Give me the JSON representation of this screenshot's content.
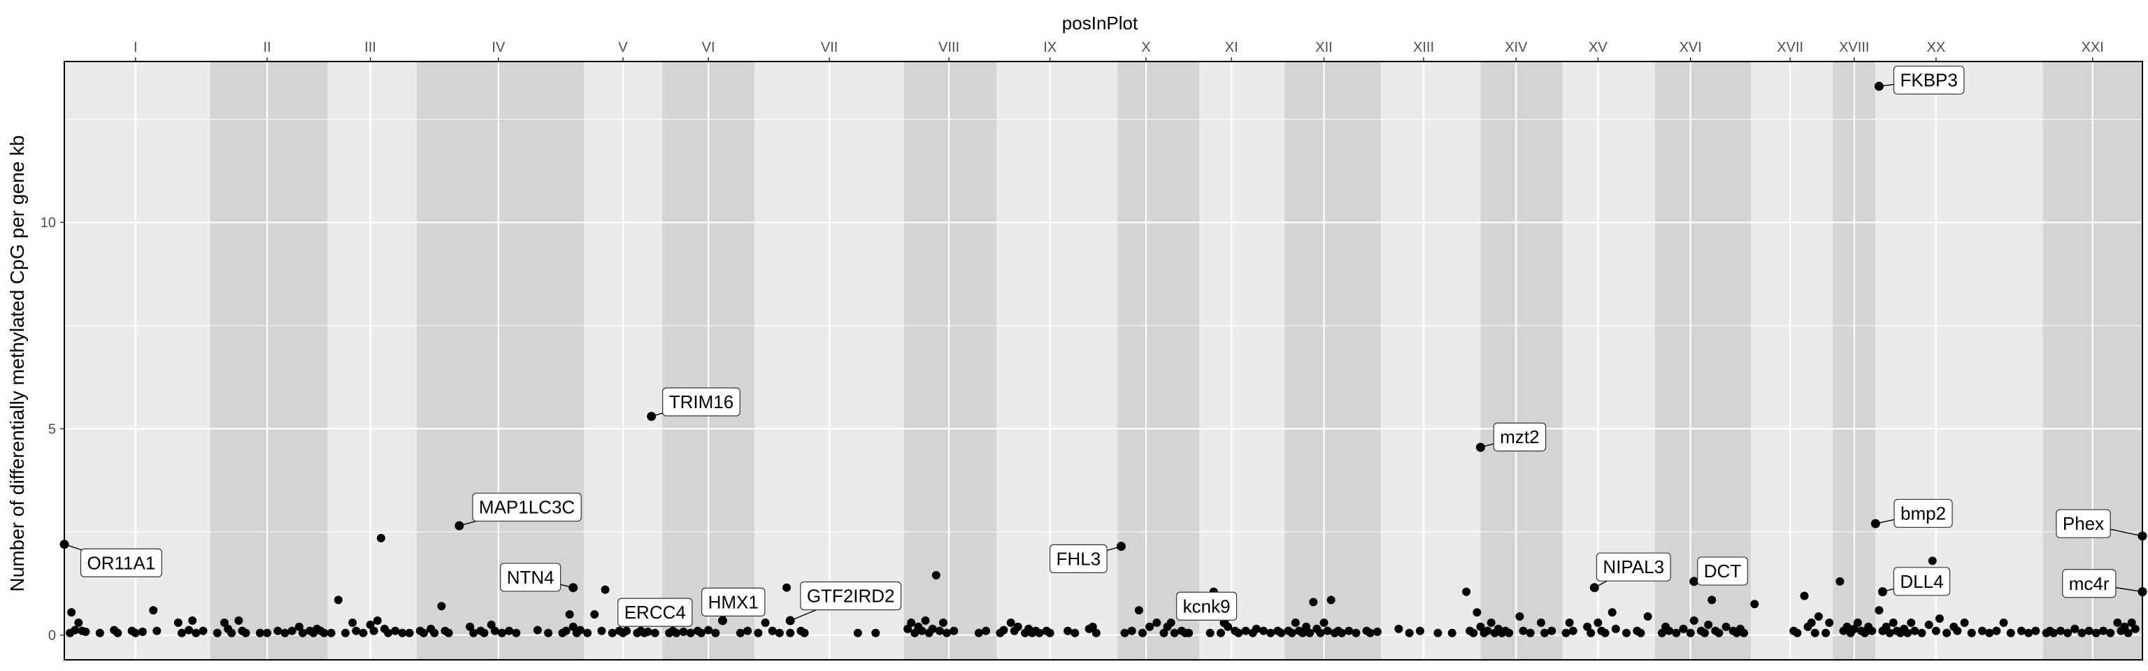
{
  "chart_data": {
    "type": "scatter",
    "title": "",
    "xlabel": "posInPlot",
    "ylabel": "Number of differentially methylated CpG per gene kb",
    "x_axis_position": "top",
    "xlim": [
      0,
      29.2
    ],
    "ylim": [
      -0.6,
      13.9
    ],
    "yticks": [
      0,
      5,
      10
    ],
    "grid": true,
    "colors": {
      "panel_light": "#ebebeb",
      "panel_dark": "#d4d4d4",
      "grid": "#ffffff",
      "point": "#000000"
    },
    "chromosomes": [
      {
        "label": "I",
        "start": 0.0,
        "end": 2.05,
        "center": 1.0,
        "shade": "light"
      },
      {
        "label": "II",
        "start": 2.05,
        "end": 3.7,
        "center": 2.85,
        "shade": "dark"
      },
      {
        "label": "III",
        "start": 3.7,
        "end": 4.95,
        "center": 4.3,
        "shade": "light"
      },
      {
        "label": "IV",
        "start": 4.95,
        "end": 7.3,
        "center": 6.1,
        "shade": "dark"
      },
      {
        "label": "V",
        "start": 7.3,
        "end": 8.4,
        "center": 7.85,
        "shade": "light"
      },
      {
        "label": "VI",
        "start": 8.4,
        "end": 9.7,
        "center": 9.05,
        "shade": "dark"
      },
      {
        "label": "VII",
        "start": 9.7,
        "end": 11.8,
        "center": 10.75,
        "shade": "light"
      },
      {
        "label": "VIII",
        "start": 11.8,
        "end": 13.1,
        "center": 12.43,
        "shade": "dark"
      },
      {
        "label": "IX",
        "start": 13.1,
        "end": 14.8,
        "center": 13.85,
        "shade": "light"
      },
      {
        "label": "X",
        "start": 14.8,
        "end": 15.95,
        "center": 15.2,
        "shade": "dark"
      },
      {
        "label": "XI",
        "start": 15.95,
        "end": 17.15,
        "center": 16.4,
        "shade": "light"
      },
      {
        "label": "XII",
        "start": 17.15,
        "end": 18.5,
        "center": 17.7,
        "shade": "dark"
      },
      {
        "label": "XIII",
        "start": 18.5,
        "end": 19.9,
        "center": 19.1,
        "shade": "light"
      },
      {
        "label": "XIV",
        "start": 19.9,
        "end": 21.05,
        "center": 20.4,
        "shade": "dark"
      },
      {
        "label": "XV",
        "start": 21.05,
        "end": 22.35,
        "center": 21.55,
        "shade": "light"
      },
      {
        "label": "XVI",
        "start": 22.35,
        "end": 23.7,
        "center": 22.85,
        "shade": "dark"
      },
      {
        "label": "XVII",
        "start": 23.7,
        "end": 24.85,
        "center": 24.25,
        "shade": "light"
      },
      {
        "label": "XVIII",
        "start": 24.85,
        "end": 25.45,
        "center": 25.15,
        "shade": "dark"
      },
      {
        "label": "XX",
        "start": 25.45,
        "end": 27.8,
        "center": 26.3,
        "shade": "light"
      },
      {
        "label": "XXI",
        "start": 27.8,
        "end": 29.2,
        "center": 28.5,
        "shade": "dark"
      }
    ],
    "labeled_points": [
      {
        "gene": "OR11A1",
        "x": 0.0,
        "y": 2.2,
        "label_pos": [
          0.8,
          1.75
        ]
      },
      {
        "gene": "MAP1LC3C",
        "x": 5.55,
        "y": 2.65,
        "label_pos": [
          6.5,
          3.1
        ]
      },
      {
        "gene": "NTN4",
        "x": 7.15,
        "y": 1.15,
        "label_pos": [
          6.55,
          1.4
        ]
      },
      {
        "gene": "ERCC4",
        "x": 8.0,
        "y": 0.45,
        "label_pos": [
          8.3,
          0.55
        ]
      },
      {
        "gene": "TRIM16",
        "x": 8.25,
        "y": 5.3,
        "label_pos": [
          8.95,
          5.65
        ]
      },
      {
        "gene": "HMX1",
        "x": 9.25,
        "y": 0.35,
        "label_pos": [
          9.4,
          0.8
        ]
      },
      {
        "gene": "GTF2IRD2",
        "x": 10.2,
        "y": 0.35,
        "label_pos": [
          11.05,
          0.95
        ]
      },
      {
        "gene": "FHL3",
        "x": 14.85,
        "y": 2.15,
        "label_pos": [
          14.25,
          1.85
        ]
      },
      {
        "gene": "kcnk9",
        "x": 16.3,
        "y": 0.3,
        "label_pos": [
          16.05,
          0.7
        ]
      },
      {
        "gene": "mzt2",
        "x": 19.9,
        "y": 4.55,
        "label_pos": [
          20.45,
          4.8
        ]
      },
      {
        "gene": "NIPAL3",
        "x": 21.5,
        "y": 1.15,
        "label_pos": [
          22.05,
          1.65
        ]
      },
      {
        "gene": "DCT",
        "x": 22.9,
        "y": 1.3,
        "label_pos": [
          23.3,
          1.55
        ]
      },
      {
        "gene": "FKBP3",
        "x": 25.5,
        "y": 13.3,
        "label_pos": [
          26.2,
          13.45
        ]
      },
      {
        "gene": "bmp2",
        "x": 25.45,
        "y": 2.7,
        "label_pos": [
          26.12,
          2.95
        ]
      },
      {
        "gene": "DLL4",
        "x": 25.55,
        "y": 1.05,
        "label_pos": [
          26.1,
          1.3
        ]
      },
      {
        "gene": "Phex",
        "x": 29.2,
        "y": 2.4,
        "label_pos": [
          28.37,
          2.7
        ]
      },
      {
        "gene": "mc4r",
        "x": 29.2,
        "y": 1.05,
        "label_pos": [
          28.45,
          1.25
        ]
      }
    ],
    "points": [
      [
        0.08,
        0.05
      ],
      [
        0.15,
        0.12
      ],
      [
        0.1,
        0.55
      ],
      [
        0.2,
        0.3
      ],
      [
        0.25,
        0.1
      ],
      [
        0.3,
        0.08
      ],
      [
        0.5,
        0.05
      ],
      [
        0.7,
        0.12
      ],
      [
        0.75,
        0.05
      ],
      [
        0.95,
        0.1
      ],
      [
        1.0,
        0.05
      ],
      [
        1.1,
        0.08
      ],
      [
        1.25,
        0.6
      ],
      [
        1.3,
        0.1
      ],
      [
        1.6,
        0.3
      ],
      [
        1.65,
        0.05
      ],
      [
        1.75,
        0.12
      ],
      [
        1.8,
        0.35
      ],
      [
        1.85,
        0.05
      ],
      [
        1.95,
        0.1
      ],
      [
        2.15,
        0.05
      ],
      [
        2.25,
        0.3
      ],
      [
        2.3,
        0.15
      ],
      [
        2.35,
        0.05
      ],
      [
        2.45,
        0.35
      ],
      [
        2.5,
        0.1
      ],
      [
        2.55,
        0.05
      ],
      [
        2.75,
        0.05
      ],
      [
        2.85,
        0.05
      ],
      [
        3.0,
        0.1
      ],
      [
        3.1,
        0.05
      ],
      [
        3.2,
        0.1
      ],
      [
        3.3,
        0.2
      ],
      [
        3.35,
        0.05
      ],
      [
        3.45,
        0.1
      ],
      [
        3.5,
        0.05
      ],
      [
        3.55,
        0.15
      ],
      [
        3.6,
        0.1
      ],
      [
        3.65,
        0.05
      ],
      [
        3.75,
        0.05
      ],
      [
        3.85,
        0.85
      ],
      [
        3.95,
        0.05
      ],
      [
        4.05,
        0.3
      ],
      [
        4.1,
        0.1
      ],
      [
        4.2,
        0.05
      ],
      [
        4.3,
        0.25
      ],
      [
        4.35,
        0.1
      ],
      [
        4.4,
        0.35
      ],
      [
        4.45,
        2.35
      ],
      [
        4.5,
        0.15
      ],
      [
        4.55,
        0.05
      ],
      [
        4.65,
        0.1
      ],
      [
        4.75,
        0.05
      ],
      [
        4.85,
        0.05
      ],
      [
        5.0,
        0.1
      ],
      [
        5.05,
        0.05
      ],
      [
        5.15,
        0.15
      ],
      [
        5.2,
        0.05
      ],
      [
        5.3,
        0.7
      ],
      [
        5.35,
        0.1
      ],
      [
        5.4,
        0.05
      ],
      [
        5.7,
        0.2
      ],
      [
        5.75,
        0.05
      ],
      [
        5.85,
        0.1
      ],
      [
        5.9,
        0.05
      ],
      [
        6.0,
        0.25
      ],
      [
        6.05,
        0.1
      ],
      [
        6.15,
        0.05
      ],
      [
        6.25,
        0.1
      ],
      [
        6.35,
        0.05
      ],
      [
        6.65,
        0.12
      ],
      [
        6.8,
        0.05
      ],
      [
        7.0,
        0.05
      ],
      [
        7.05,
        0.1
      ],
      [
        7.1,
        0.5
      ],
      [
        7.15,
        0.2
      ],
      [
        7.2,
        0.05
      ],
      [
        7.25,
        0.12
      ],
      [
        7.35,
        0.05
      ],
      [
        7.45,
        0.5
      ],
      [
        7.55,
        0.1
      ],
      [
        7.6,
        1.1
      ],
      [
        7.7,
        0.05
      ],
      [
        7.8,
        0.1
      ],
      [
        7.85,
        0.05
      ],
      [
        7.9,
        0.1
      ],
      [
        8.05,
        0.05
      ],
      [
        8.1,
        0.1
      ],
      [
        8.15,
        0.05
      ],
      [
        8.2,
        0.08
      ],
      [
        8.3,
        0.05
      ],
      [
        8.5,
        0.05
      ],
      [
        8.55,
        0.1
      ],
      [
        8.6,
        0.05
      ],
      [
        8.7,
        0.08
      ],
      [
        8.8,
        0.05
      ],
      [
        8.9,
        0.1
      ],
      [
        8.95,
        0.05
      ],
      [
        9.05,
        0.12
      ],
      [
        9.15,
        0.05
      ],
      [
        9.5,
        0.05
      ],
      [
        9.6,
        0.1
      ],
      [
        9.75,
        0.05
      ],
      [
        9.85,
        0.3
      ],
      [
        9.95,
        0.1
      ],
      [
        10.05,
        0.05
      ],
      [
        10.15,
        1.15
      ],
      [
        10.2,
        0.05
      ],
      [
        10.35,
        0.1
      ],
      [
        10.4,
        0.05
      ],
      [
        11.15,
        0.05
      ],
      [
        11.4,
        0.05
      ],
      [
        11.85,
        0.15
      ],
      [
        11.9,
        0.3
      ],
      [
        11.95,
        0.05
      ],
      [
        12.0,
        0.2
      ],
      [
        12.05,
        0.1
      ],
      [
        12.1,
        0.35
      ],
      [
        12.15,
        0.05
      ],
      [
        12.2,
        0.15
      ],
      [
        12.25,
        1.45
      ],
      [
        12.3,
        0.1
      ],
      [
        12.35,
        0.3
      ],
      [
        12.4,
        0.05
      ],
      [
        12.5,
        0.1
      ],
      [
        12.85,
        0.05
      ],
      [
        12.95,
        0.1
      ],
      [
        13.15,
        0.05
      ],
      [
        13.2,
        0.12
      ],
      [
        13.3,
        0.3
      ],
      [
        13.35,
        0.1
      ],
      [
        13.4,
        0.2
      ],
      [
        13.5,
        0.05
      ],
      [
        13.55,
        0.15
      ],
      [
        13.6,
        0.05
      ],
      [
        13.65,
        0.1
      ],
      [
        13.7,
        0.05
      ],
      [
        13.8,
        0.1
      ],
      [
        13.85,
        0.05
      ],
      [
        14.1,
        0.1
      ],
      [
        14.2,
        0.05
      ],
      [
        14.4,
        0.15
      ],
      [
        14.45,
        0.2
      ],
      [
        14.5,
        0.05
      ],
      [
        14.9,
        0.05
      ],
      [
        15.0,
        0.1
      ],
      [
        15.1,
        0.6
      ],
      [
        15.15,
        0.05
      ],
      [
        15.25,
        0.2
      ],
      [
        15.35,
        0.3
      ],
      [
        15.45,
        0.05
      ],
      [
        15.5,
        0.2
      ],
      [
        15.55,
        0.3
      ],
      [
        15.6,
        0.05
      ],
      [
        15.7,
        0.1
      ],
      [
        15.75,
        0.05
      ],
      [
        15.8,
        0.05
      ],
      [
        16.1,
        0.05
      ],
      [
        16.15,
        1.05
      ],
      [
        16.2,
        0.6
      ],
      [
        16.25,
        0.05
      ],
      [
        16.35,
        0.2
      ],
      [
        16.45,
        0.1
      ],
      [
        16.5,
        0.05
      ],
      [
        16.6,
        0.1
      ],
      [
        16.7,
        0.05
      ],
      [
        16.75,
        0.15
      ],
      [
        16.85,
        0.1
      ],
      [
        16.95,
        0.05
      ],
      [
        17.05,
        0.1
      ],
      [
        17.1,
        0.05
      ],
      [
        17.2,
        0.1
      ],
      [
        17.25,
        0.05
      ],
      [
        17.3,
        0.3
      ],
      [
        17.35,
        0.1
      ],
      [
        17.4,
        0.05
      ],
      [
        17.45,
        0.2
      ],
      [
        17.5,
        0.05
      ],
      [
        17.55,
        0.8
      ],
      [
        17.6,
        0.15
      ],
      [
        17.65,
        0.05
      ],
      [
        17.7,
        0.3
      ],
      [
        17.75,
        0.1
      ],
      [
        17.8,
        0.85
      ],
      [
        17.85,
        0.05
      ],
      [
        17.9,
        0.1
      ],
      [
        17.95,
        0.05
      ],
      [
        18.05,
        0.1
      ],
      [
        18.15,
        0.05
      ],
      [
        18.3,
        0.1
      ],
      [
        18.35,
        0.05
      ],
      [
        18.45,
        0.08
      ],
      [
        18.75,
        0.15
      ],
      [
        18.9,
        0.05
      ],
      [
        19.05,
        0.1
      ],
      [
        19.3,
        0.05
      ],
      [
        19.5,
        0.05
      ],
      [
        19.7,
        1.05
      ],
      [
        19.75,
        0.1
      ],
      [
        19.8,
        0.05
      ],
      [
        19.85,
        0.55
      ],
      [
        19.9,
        0.2
      ],
      [
        19.95,
        0.05
      ],
      [
        20.0,
        0.1
      ],
      [
        20.05,
        0.3
      ],
      [
        20.1,
        0.05
      ],
      [
        20.15,
        0.15
      ],
      [
        20.2,
        0.05
      ],
      [
        20.25,
        0.1
      ],
      [
        20.3,
        0.05
      ],
      [
        20.45,
        0.45
      ],
      [
        20.5,
        0.1
      ],
      [
        20.6,
        0.05
      ],
      [
        20.75,
        0.3
      ],
      [
        20.8,
        0.05
      ],
      [
        20.9,
        0.1
      ],
      [
        21.1,
        0.05
      ],
      [
        21.15,
        0.3
      ],
      [
        21.2,
        0.1
      ],
      [
        21.4,
        0.2
      ],
      [
        21.45,
        0.05
      ],
      [
        21.55,
        0.3
      ],
      [
        21.6,
        0.1
      ],
      [
        21.65,
        0.05
      ],
      [
        21.75,
        0.55
      ],
      [
        21.8,
        0.15
      ],
      [
        21.95,
        0.05
      ],
      [
        22.1,
        0.1
      ],
      [
        22.15,
        0.05
      ],
      [
        22.25,
        0.45
      ],
      [
        22.45,
        0.05
      ],
      [
        22.5,
        0.2
      ],
      [
        22.55,
        0.1
      ],
      [
        22.65,
        0.05
      ],
      [
        22.75,
        0.15
      ],
      [
        22.85,
        0.05
      ],
      [
        22.9,
        0.35
      ],
      [
        23.0,
        0.1
      ],
      [
        23.05,
        0.05
      ],
      [
        23.1,
        0.25
      ],
      [
        23.15,
        0.85
      ],
      [
        23.2,
        0.1
      ],
      [
        23.25,
        0.05
      ],
      [
        23.35,
        0.2
      ],
      [
        23.45,
        0.1
      ],
      [
        23.5,
        0.05
      ],
      [
        23.55,
        0.15
      ],
      [
        23.6,
        0.05
      ],
      [
        23.75,
        0.75
      ],
      [
        24.3,
        0.1
      ],
      [
        24.35,
        0.05
      ],
      [
        24.45,
        0.95
      ],
      [
        24.5,
        0.2
      ],
      [
        24.55,
        0.3
      ],
      [
        24.6,
        0.05
      ],
      [
        24.65,
        0.45
      ],
      [
        24.75,
        0.05
      ],
      [
        24.8,
        0.3
      ],
      [
        24.95,
        1.3
      ],
      [
        25.0,
        0.1
      ],
      [
        25.05,
        0.2
      ],
      [
        25.1,
        0.05
      ],
      [
        25.15,
        0.15
      ],
      [
        25.2,
        0.3
      ],
      [
        25.25,
        0.1
      ],
      [
        25.3,
        0.05
      ],
      [
        25.35,
        0.2
      ],
      [
        25.4,
        0.1
      ],
      [
        25.5,
        0.6
      ],
      [
        25.55,
        0.1
      ],
      [
        25.6,
        0.2
      ],
      [
        25.65,
        0.05
      ],
      [
        25.7,
        0.3
      ],
      [
        25.75,
        0.1
      ],
      [
        25.8,
        0.05
      ],
      [
        25.85,
        0.15
      ],
      [
        25.9,
        0.05
      ],
      [
        25.95,
        0.3
      ],
      [
        26.0,
        0.1
      ],
      [
        26.1,
        0.05
      ],
      [
        26.2,
        0.25
      ],
      [
        26.25,
        1.8
      ],
      [
        26.3,
        0.1
      ],
      [
        26.35,
        0.4
      ],
      [
        26.45,
        0.05
      ],
      [
        26.55,
        0.2
      ],
      [
        26.6,
        0.1
      ],
      [
        26.7,
        0.3
      ],
      [
        26.8,
        0.05
      ],
      [
        26.95,
        0.1
      ],
      [
        27.05,
        0.05
      ],
      [
        27.15,
        0.1
      ],
      [
        27.25,
        0.3
      ],
      [
        27.35,
        0.05
      ],
      [
        27.5,
        0.1
      ],
      [
        27.6,
        0.05
      ],
      [
        27.7,
        0.1
      ],
      [
        27.85,
        0.05
      ],
      [
        27.9,
        0.1
      ],
      [
        27.95,
        0.05
      ],
      [
        28.05,
        0.1
      ],
      [
        28.15,
        0.05
      ],
      [
        28.25,
        0.15
      ],
      [
        28.35,
        0.05
      ],
      [
        28.45,
        0.1
      ],
      [
        28.55,
        0.05
      ],
      [
        28.65,
        0.1
      ],
      [
        28.75,
        0.05
      ],
      [
        28.85,
        0.3
      ],
      [
        28.9,
        0.1
      ],
      [
        28.95,
        0.2
      ],
      [
        29.0,
        0.05
      ],
      [
        29.05,
        0.3
      ],
      [
        29.1,
        0.15
      ]
    ]
  }
}
